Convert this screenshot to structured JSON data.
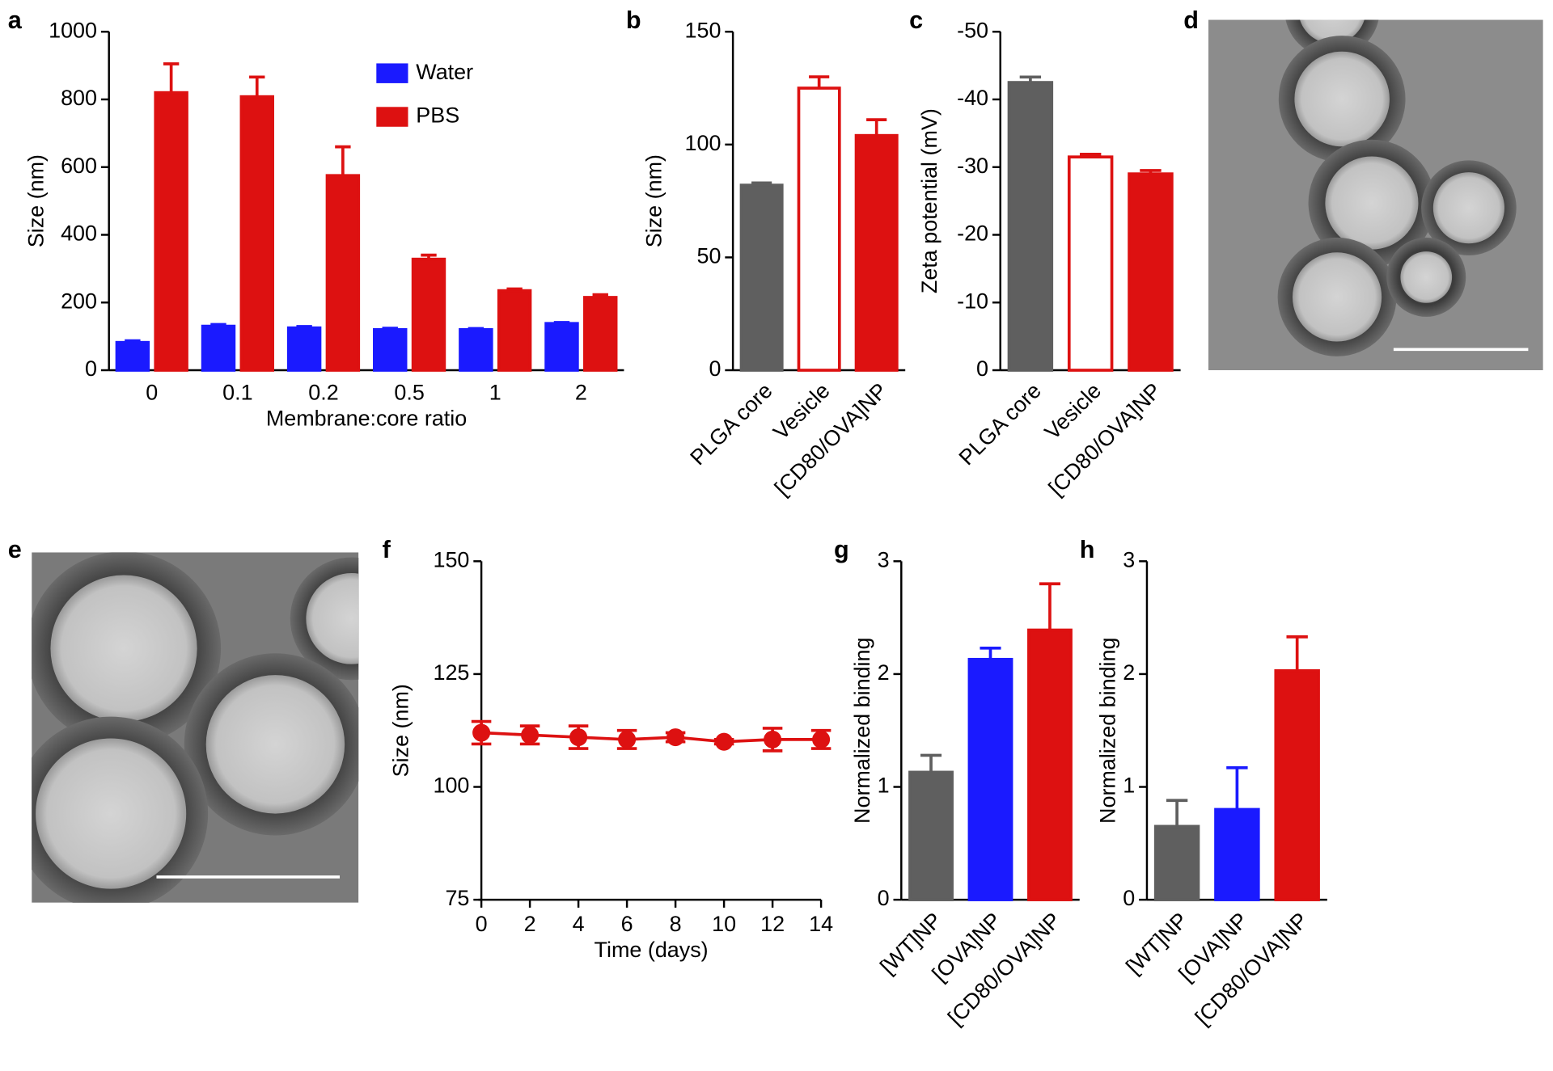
{
  "chart_data": [
    {
      "panel": "a",
      "type": "bar",
      "y_label": "Size (nm)",
      "x_label": "Membrane:core ratio",
      "categories": [
        "0",
        "0.1",
        "0.2",
        "0.5",
        "1",
        "2"
      ],
      "series": [
        {
          "name": "Water",
          "color": "#1a1aff",
          "values": [
            82,
            130,
            125,
            120,
            120,
            138
          ],
          "errors": [
            5,
            5,
            4,
            4,
            3,
            3
          ]
        },
        {
          "name": "PBS",
          "color": "#dd1111",
          "values": [
            820,
            808,
            575,
            328,
            235,
            215
          ],
          "errors": [
            85,
            58,
            85,
            12,
            5,
            8
          ]
        }
      ],
      "ylim": [
        0,
        1000
      ],
      "yticks": [
        0,
        200,
        400,
        600,
        800,
        1000
      ],
      "legend": "upper right",
      "grid": false
    },
    {
      "panel": "b",
      "type": "bar",
      "y_label": "Size (nm)",
      "categories": [
        "PLGA core",
        "Vesicle",
        "[CD80/OVA]NP"
      ],
      "values": [
        82,
        125,
        104
      ],
      "errors": [
        1,
        5,
        7
      ],
      "colors": [
        "#5f5f5f",
        "#ffffff",
        "#dd1111"
      ],
      "edge_colors": [
        "#5f5f5f",
        "#dd1111",
        "#dd1111"
      ],
      "ylim": [
        0,
        150
      ],
      "yticks": [
        0,
        50,
        100,
        150
      ],
      "xtick_rotation": 45,
      "grid": false
    },
    {
      "panel": "c",
      "type": "bar",
      "y_label": "Zeta potential (mV)",
      "categories": [
        "PLGA core",
        "Vesicle",
        "[CD80/OVA]NP"
      ],
      "values": [
        -42.5,
        -31.5,
        -29
      ],
      "errors": [
        0.8,
        0.4,
        0.5
      ],
      "colors": [
        "#5f5f5f",
        "#ffffff",
        "#dd1111"
      ],
      "edge_colors": [
        "#5f5f5f",
        "#dd1111",
        "#dd1111"
      ],
      "ylim": [
        0,
        -50
      ],
      "yticks": [
        0,
        -10,
        -20,
        -30,
        -40,
        -50
      ],
      "xtick_rotation": 45,
      "grid": false
    },
    {
      "panel": "f",
      "type": "line",
      "y_label": "Size (nm)",
      "x_label": "Time (days)",
      "x": [
        0,
        2,
        4,
        6,
        8,
        10,
        12,
        14
      ],
      "series": [
        {
          "color": "#dd1111",
          "values": [
            112,
            111.5,
            111,
            110.5,
            111,
            110,
            110.5,
            110.5
          ],
          "errors": [
            2.5,
            2,
            2.5,
            2,
            1,
            0.5,
            2.5,
            2
          ]
        }
      ],
      "xlim": [
        0,
        14
      ],
      "xticks": [
        0,
        2,
        4,
        6,
        8,
        10,
        12,
        14
      ],
      "ylim": [
        75,
        150
      ],
      "yticks": [
        75,
        100,
        125,
        150
      ],
      "grid": false
    },
    {
      "panel": "g",
      "type": "bar",
      "y_label": "Normalized binding",
      "categories": [
        "[WT]NP",
        "[OVA]NP",
        "[CD80/OVA]NP"
      ],
      "values": [
        1.13,
        2.13,
        2.39
      ],
      "errors": [
        0.15,
        0.1,
        0.41
      ],
      "colors": [
        "#5f5f5f",
        "#1a1aff",
        "#dd1111"
      ],
      "ylim": [
        0,
        3
      ],
      "yticks": [
        0,
        1,
        2,
        3
      ],
      "xtick_rotation": 45,
      "grid": false
    },
    {
      "panel": "h",
      "type": "bar",
      "y_label": "Normalized binding",
      "categories": [
        "[WT]NP",
        "[OVA]NP",
        "[CD80/OVA]NP"
      ],
      "values": [
        0.65,
        0.8,
        2.03
      ],
      "errors": [
        0.23,
        0.37,
        0.3
      ],
      "colors": [
        "#5f5f5f",
        "#1a1aff",
        "#dd1111"
      ],
      "ylim": [
        0,
        3
      ],
      "yticks": [
        0,
        1,
        2,
        3
      ],
      "xtick_rotation": 45,
      "grid": false
    }
  ],
  "image_panels": [
    {
      "panel": "d"
    },
    {
      "panel": "e"
    }
  ]
}
